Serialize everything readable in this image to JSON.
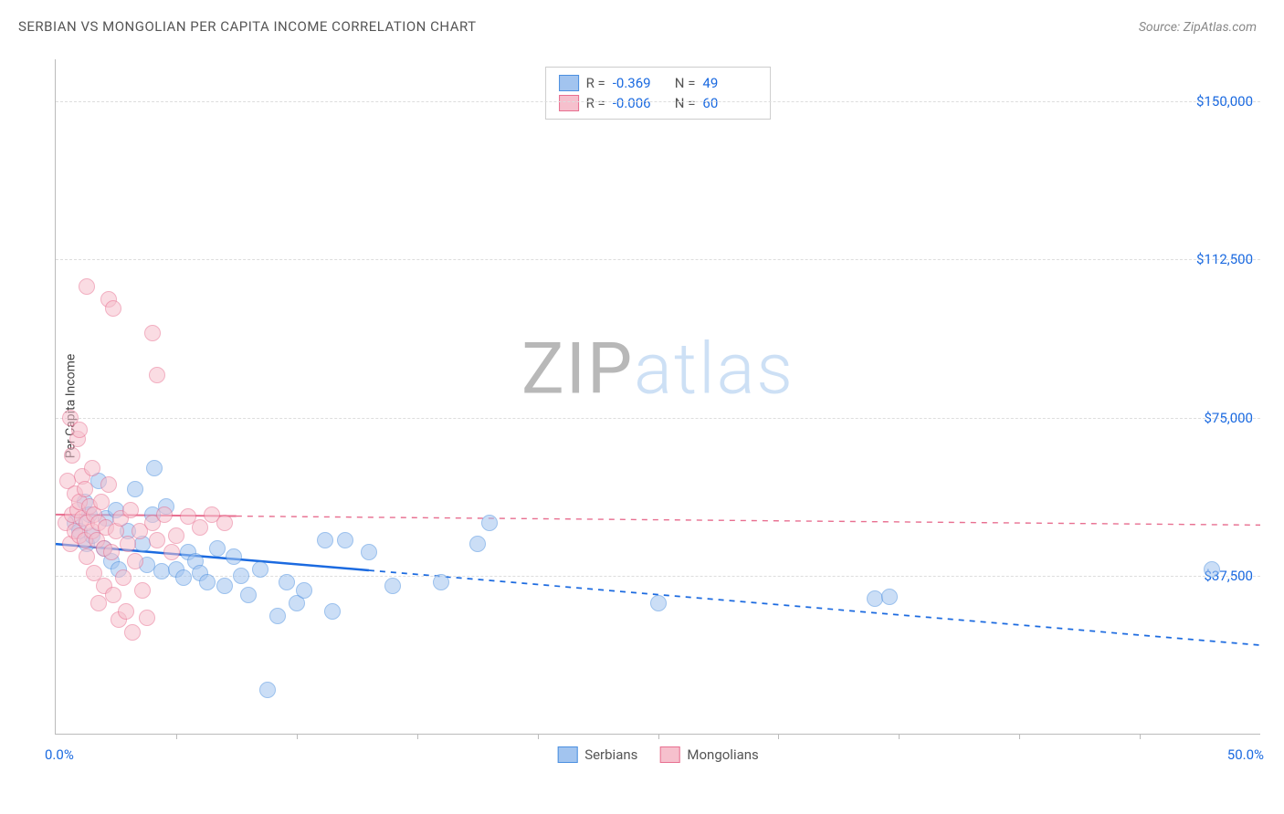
{
  "title": "SERBIAN VS MONGOLIAN PER CAPITA INCOME CORRELATION CHART",
  "source_prefix": "Source: ",
  "source": "ZipAtlas.com",
  "ylabel": "Per Capita Income",
  "watermark": {
    "zip": "ZIP",
    "atlas": "atlas"
  },
  "chart": {
    "type": "scatter",
    "xlim": [
      0,
      50
    ],
    "ylim": [
      0,
      160000
    ],
    "x_axis_min_label": "0.0%",
    "x_axis_max_label": "50.0%",
    "x_label_color": "#1b6ae0",
    "y_ticks": [
      {
        "v": 37500,
        "label": "$37,500"
      },
      {
        "v": 75000,
        "label": "$75,000"
      },
      {
        "v": 112500,
        "label": "$112,500"
      },
      {
        "v": 150000,
        "label": "$150,000"
      }
    ],
    "y_tick_color": "#1b6ae0",
    "x_tick_positions": [
      5,
      10,
      15,
      20,
      25,
      30,
      35,
      40,
      45
    ],
    "grid_color": "#dddddd",
    "axis_color": "#bbbbbb",
    "background_color": "#ffffff",
    "marker_radius": 9,
    "marker_opacity": 0.55,
    "label_fontsize": 14,
    "tick_fontsize": 15,
    "series": [
      {
        "name": "Serbians",
        "fill": "#a2c4ef",
        "stroke": "#4b8fe0",
        "trend": {
          "start": [
            0,
            45000
          ],
          "end": [
            50,
            21000
          ],
          "solid_until_x": 13,
          "color": "#1b6ae0",
          "width": 2.5
        },
        "R": "-0.369",
        "N": "49",
        "points": [
          [
            0.8,
            50000
          ],
          [
            1.0,
            48000
          ],
          [
            1.2,
            55000
          ],
          [
            1.3,
            45000
          ],
          [
            1.4,
            52000
          ],
          [
            1.5,
            47000
          ],
          [
            1.8,
            60000
          ],
          [
            2.0,
            44000
          ],
          [
            2.1,
            51000
          ],
          [
            2.3,
            41000
          ],
          [
            2.5,
            53000
          ],
          [
            2.6,
            39000
          ],
          [
            3.0,
            48000
          ],
          [
            3.3,
            58000
          ],
          [
            3.6,
            45000
          ],
          [
            3.8,
            40000
          ],
          [
            4.0,
            52000
          ],
          [
            4.1,
            63000
          ],
          [
            4.4,
            38500
          ],
          [
            4.6,
            54000
          ],
          [
            5.0,
            39000
          ],
          [
            5.3,
            37000
          ],
          [
            5.5,
            43000
          ],
          [
            5.8,
            41000
          ],
          [
            6.0,
            38000
          ],
          [
            6.3,
            36000
          ],
          [
            6.7,
            44000
          ],
          [
            7.0,
            35000
          ],
          [
            7.4,
            42000
          ],
          [
            7.7,
            37500
          ],
          [
            8.0,
            33000
          ],
          [
            8.5,
            39000
          ],
          [
            8.8,
            10500
          ],
          [
            9.2,
            28000
          ],
          [
            9.6,
            36000
          ],
          [
            10.0,
            31000
          ],
          [
            10.3,
            34000
          ],
          [
            11.2,
            46000
          ],
          [
            11.5,
            29000
          ],
          [
            12.0,
            46000
          ],
          [
            13.0,
            43000
          ],
          [
            14.0,
            35000
          ],
          [
            16.0,
            36000
          ],
          [
            17.5,
            45000
          ],
          [
            18.0,
            50000
          ],
          [
            25.0,
            31000
          ],
          [
            34.0,
            32000
          ],
          [
            34.6,
            32500
          ],
          [
            48.0,
            39000
          ]
        ]
      },
      {
        "name": "Mongolians",
        "fill": "#f6c0cd",
        "stroke": "#e86f90",
        "trend": {
          "start": [
            0,
            52000
          ],
          "end": [
            50,
            49500
          ],
          "solid_until_x": 7.5,
          "color": "#e86f90",
          "width": 2
        },
        "R": "-0.006",
        "N": "60",
        "points": [
          [
            0.4,
            50000
          ],
          [
            0.5,
            60000
          ],
          [
            0.6,
            45000
          ],
          [
            0.6,
            75000
          ],
          [
            0.7,
            52000
          ],
          [
            0.7,
            66000
          ],
          [
            0.8,
            48000
          ],
          [
            0.8,
            57000
          ],
          [
            0.9,
            53000
          ],
          [
            0.9,
            70000
          ],
          [
            1.0,
            47000
          ],
          [
            1.0,
            55000
          ],
          [
            1.0,
            72000
          ],
          [
            1.1,
            51000
          ],
          [
            1.1,
            61000
          ],
          [
            1.2,
            46000
          ],
          [
            1.2,
            58000
          ],
          [
            1.3,
            50000
          ],
          [
            1.3,
            42000
          ],
          [
            1.4,
            54000
          ],
          [
            1.5,
            48000
          ],
          [
            1.5,
            63000
          ],
          [
            1.6,
            38000
          ],
          [
            1.6,
            52000
          ],
          [
            1.7,
            46000
          ],
          [
            1.8,
            50000
          ],
          [
            1.8,
            31000
          ],
          [
            1.9,
            55000
          ],
          [
            2.0,
            44000
          ],
          [
            2.0,
            35000
          ],
          [
            2.1,
            49000
          ],
          [
            2.2,
            59000
          ],
          [
            2.3,
            43000
          ],
          [
            2.4,
            33000
          ],
          [
            2.5,
            48000
          ],
          [
            2.6,
            27000
          ],
          [
            2.7,
            51000
          ],
          [
            2.8,
            37000
          ],
          [
            2.9,
            29000
          ],
          [
            3.0,
            45000
          ],
          [
            3.1,
            53000
          ],
          [
            3.2,
            24000
          ],
          [
            3.3,
            41000
          ],
          [
            3.5,
            48000
          ],
          [
            3.6,
            34000
          ],
          [
            3.8,
            27500
          ],
          [
            4.0,
            50000
          ],
          [
            4.2,
            46000
          ],
          [
            4.5,
            52000
          ],
          [
            4.8,
            43000
          ],
          [
            5.0,
            47000
          ],
          [
            5.5,
            51500
          ],
          [
            6.0,
            49000
          ],
          [
            6.5,
            52000
          ],
          [
            7.0,
            50000
          ],
          [
            1.3,
            106000
          ],
          [
            2.2,
            103000
          ],
          [
            2.4,
            101000
          ],
          [
            4.0,
            95000
          ],
          [
            4.2,
            85000
          ]
        ]
      }
    ],
    "legend_top_labels": {
      "R": "R =",
      "N": "N ="
    },
    "legend_value_color": "#1b6ae0"
  }
}
